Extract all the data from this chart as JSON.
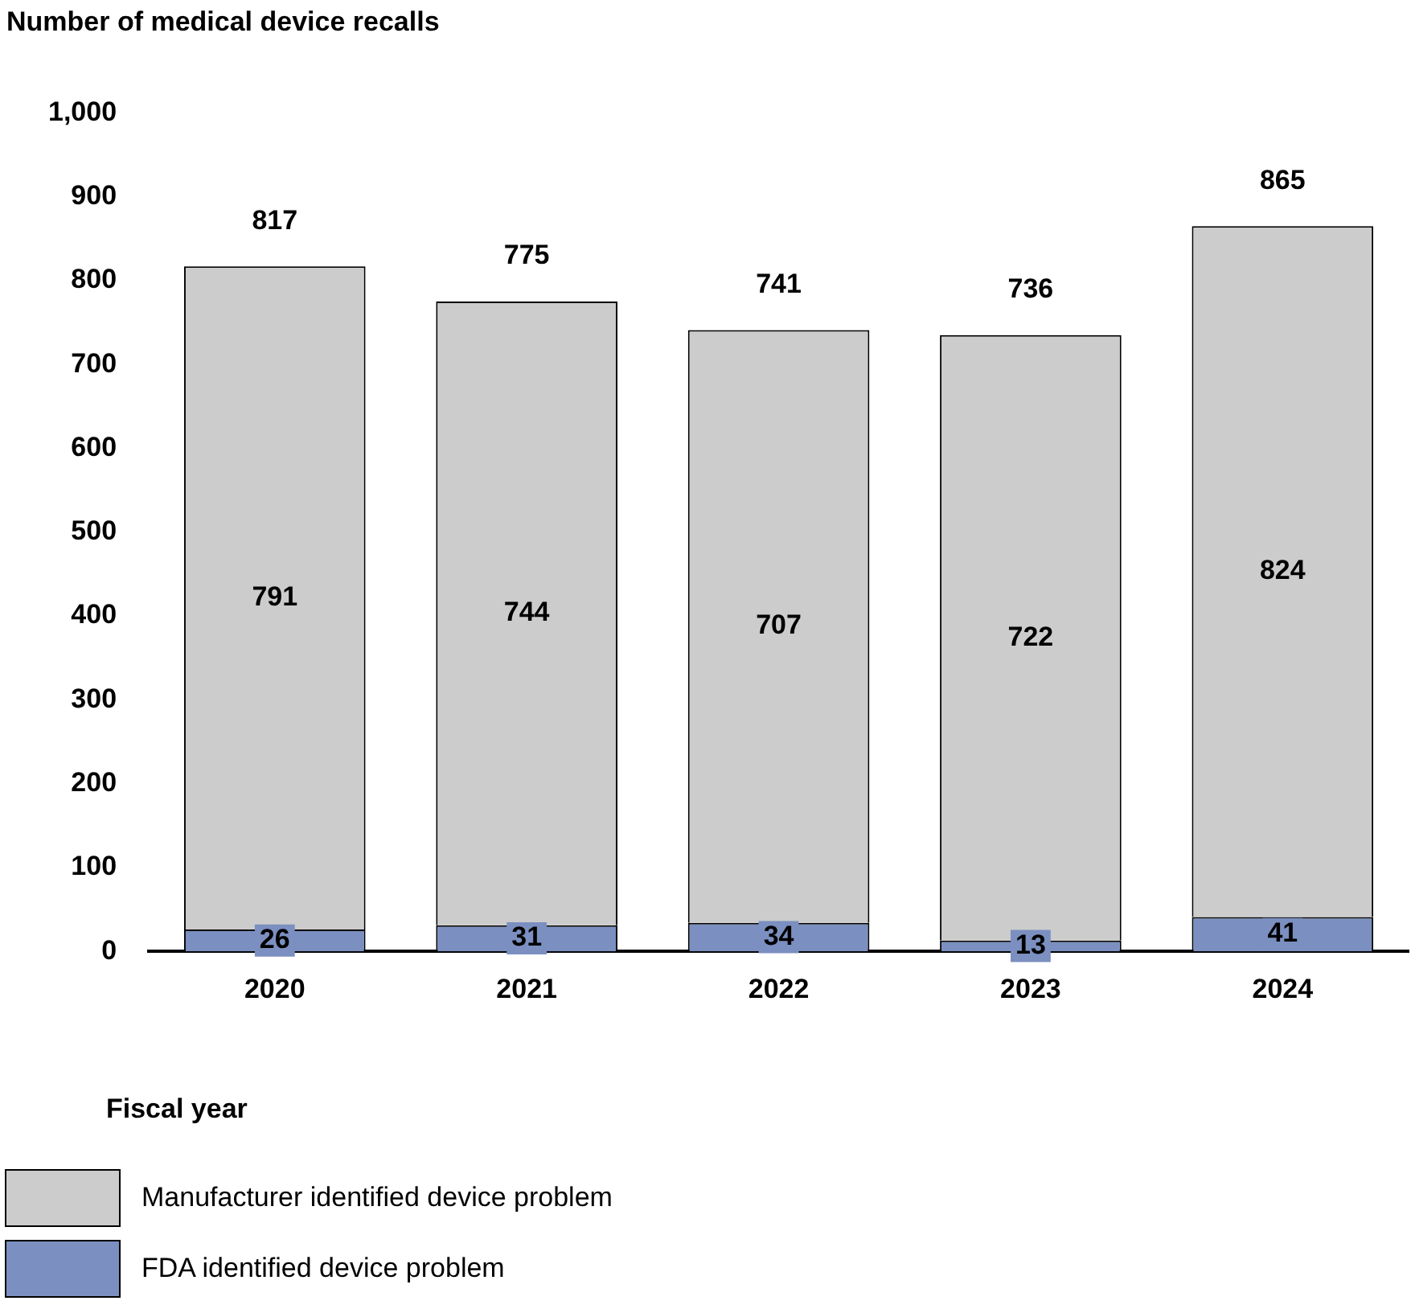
{
  "chart_data": {
    "type": "bar",
    "stacked": true,
    "ylabel": "Number of medical device recalls",
    "xlabel": "Fiscal year",
    "categories": [
      "2020",
      "2021",
      "2022",
      "2023",
      "2024"
    ],
    "series": [
      {
        "name": "FDA identified device problem",
        "color": "#7b8fc0",
        "values": [
          26,
          31,
          34,
          13,
          41
        ]
      },
      {
        "name": "Manufacturer identified device problem",
        "color": "#cccccc",
        "values": [
          791,
          744,
          707,
          722,
          824
        ]
      }
    ],
    "totals": [
      "817",
      "775",
      "741",
      "736",
      "865"
    ],
    "data_labels": true,
    "grid": false,
    "legend": "bottom",
    "ylim": [
      0,
      1000
    ],
    "yticks": [
      0,
      100,
      200,
      300,
      400,
      500,
      600,
      700,
      800,
      900,
      {
        "value": 1000,
        "label": "1,000"
      }
    ]
  }
}
